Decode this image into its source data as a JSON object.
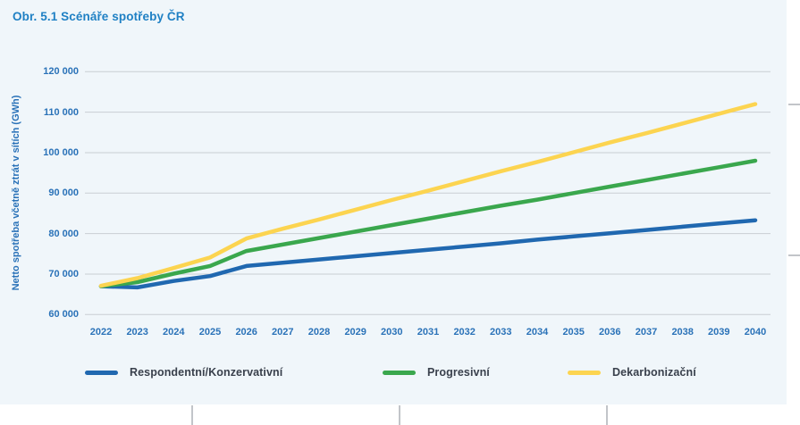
{
  "figure": {
    "title": "Obr. 5.1 Scénáře spotřeby ČR"
  },
  "chart_data": {
    "type": "line",
    "title": "Obr. 5.1 Scénáře spotřeby ČR",
    "ylabel": "Netto spotřeba včetně ztrát v sítích (GWh)",
    "xlabel": "",
    "x": [
      2022,
      2023,
      2024,
      2025,
      2026,
      2027,
      2028,
      2029,
      2030,
      2031,
      2032,
      2033,
      2034,
      2035,
      2036,
      2037,
      2038,
      2039,
      2040
    ],
    "x_tick_labels": [
      "2022",
      "2023",
      "2024",
      "2025",
      "2026",
      "2027",
      "2028",
      "2029",
      "2030",
      "2031",
      "2032",
      "2033",
      "2034",
      "2035",
      "2036",
      "2037",
      "2038",
      "2039",
      "2040"
    ],
    "ylim": [
      60000,
      120000
    ],
    "y_ticks": [
      120000,
      110000,
      100000,
      90000,
      80000,
      70000,
      60000
    ],
    "y_tick_labels": [
      "120 000",
      "110 000",
      "100 000",
      "90 000",
      "80 000",
      "70 000",
      "60 000"
    ],
    "grid": true,
    "legend_position": "bottom",
    "series": [
      {
        "name": "Respondentní/Konzervativní",
        "color": "#2068b0",
        "values": [
          67000,
          66700,
          68300,
          69500,
          72000,
          72800,
          73600,
          74400,
          75200,
          76000,
          76800,
          77600,
          78500,
          79300,
          80100,
          80900,
          81700,
          82500,
          83300
        ]
      },
      {
        "name": "Progresivní",
        "color": "#3aa74d",
        "values": [
          67000,
          68000,
          70100,
          72000,
          75700,
          77300,
          78900,
          80500,
          82100,
          83700,
          85300,
          86900,
          88400,
          90000,
          91600,
          93200,
          94800,
          96400,
          98000
        ]
      },
      {
        "name": "Dekarbonizační",
        "color": "#fcd450",
        "values": [
          67100,
          69000,
          71500,
          74100,
          78800,
          81200,
          83500,
          85900,
          88300,
          90600,
          93000,
          95400,
          97700,
          100100,
          102500,
          104800,
          107200,
          109600,
          112000
        ]
      }
    ]
  },
  "colors": {
    "panel_bg": "#f0f6fa",
    "gridline": "#c9ced3",
    "title_text": "#1f80c4",
    "axis_text": "#2a72b8",
    "legend_text": "#39404c",
    "tick_mark": "#c2c5c9"
  }
}
